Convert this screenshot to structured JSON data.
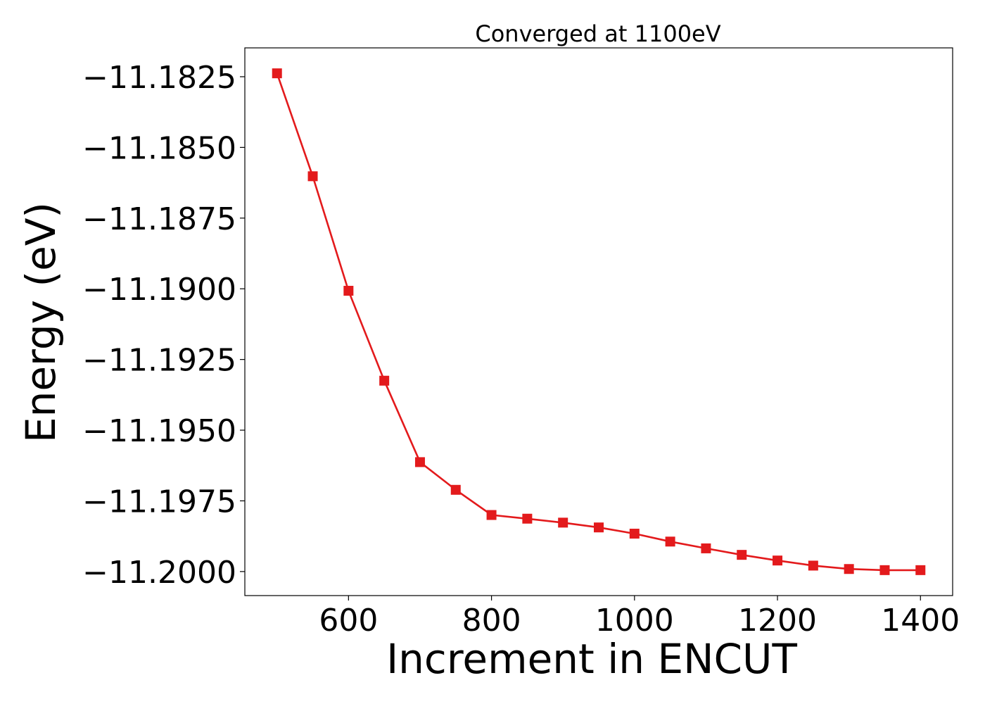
{
  "chart_data": {
    "type": "line",
    "title": "Converged at 1100eV",
    "xlabel": "Increment in ENCUT",
    "ylabel": "Energy (eV)",
    "xlim": [
      455,
      1445
    ],
    "ylim": [
      -11.20085,
      -11.18148
    ],
    "xticks": [
      600,
      800,
      1000,
      1200,
      1400
    ],
    "yticks": [
      -11.1825,
      -11.185,
      -11.1875,
      -11.19,
      -11.1925,
      -11.195,
      -11.1975,
      -11.2
    ],
    "ytick_labels": [
      "−11.1825",
      "−11.1850",
      "−11.1875",
      "−11.1900",
      "−11.1925",
      "−11.1950",
      "−11.1975",
      "−11.2000"
    ],
    "grid": false,
    "legend": "none",
    "marker": "square",
    "color": "#e31a1c",
    "series": [
      {
        "x": [
          500,
          550,
          600,
          650,
          700,
          750,
          800,
          850,
          900,
          950,
          1000,
          1050,
          1100,
          1150,
          1200,
          1250,
          1300,
          1350,
          1400
        ],
        "y": [
          -11.18238,
          -11.18602,
          -11.19007,
          -11.19325,
          -11.19613,
          -11.19711,
          -11.198,
          -11.19813,
          -11.19827,
          -11.19844,
          -11.19866,
          -11.19894,
          -11.19918,
          -11.19941,
          -11.19961,
          -11.19979,
          -11.19991,
          -11.19995,
          -11.19995
        ]
      }
    ]
  }
}
